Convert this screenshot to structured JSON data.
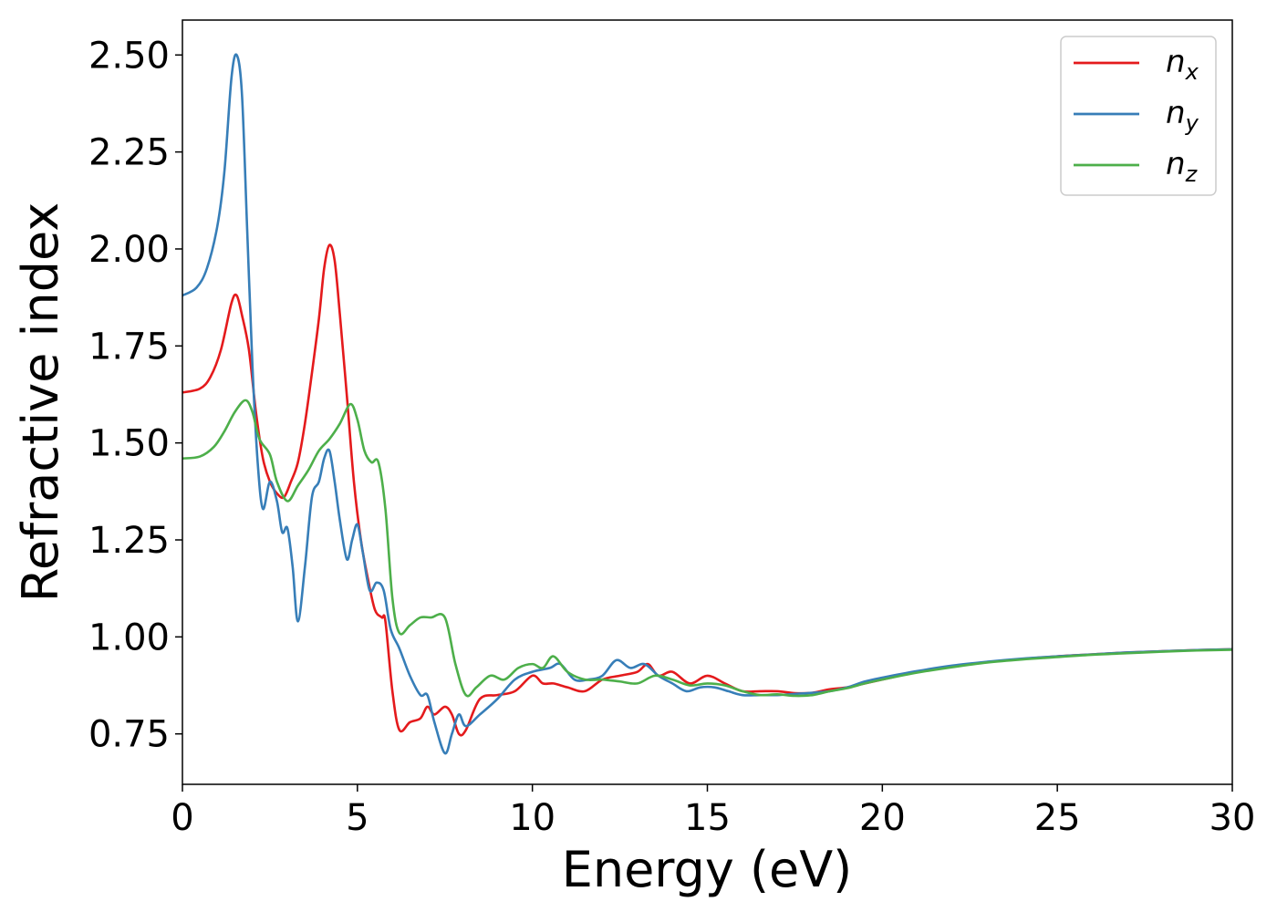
{
  "chart_data": {
    "type": "line",
    "title": "",
    "xlabel": "Energy (eV)",
    "ylabel": "Refractive index",
    "xlim": [
      0,
      30
    ],
    "ylim": [
      0.62,
      2.59
    ],
    "xticks": [
      0,
      5,
      10,
      15,
      20,
      25,
      30
    ],
    "xtick_labels": [
      "0",
      "5",
      "10",
      "15",
      "20",
      "25",
      "30"
    ],
    "yticks": [
      0.75,
      1.0,
      1.25,
      1.5,
      1.75,
      2.0,
      2.25,
      2.5
    ],
    "ytick_labels": [
      "0.75",
      "1.00",
      "1.25",
      "1.50",
      "1.75",
      "2.00",
      "2.25",
      "2.50"
    ],
    "grid": false,
    "legend_position": "top-right",
    "series": [
      {
        "name": "n",
        "subscript": "x",
        "color": "#e41a1c",
        "points": [
          [
            0,
            1.63
          ],
          [
            0.5,
            1.64
          ],
          [
            0.8,
            1.67
          ],
          [
            1.1,
            1.74
          ],
          [
            1.4,
            1.86
          ],
          [
            1.55,
            1.88
          ],
          [
            1.7,
            1.83
          ],
          [
            1.9,
            1.74
          ],
          [
            2.1,
            1.58
          ],
          [
            2.3,
            1.46
          ],
          [
            2.5,
            1.4
          ],
          [
            2.7,
            1.37
          ],
          [
            2.9,
            1.36
          ],
          [
            3.1,
            1.4
          ],
          [
            3.3,
            1.45
          ],
          [
            3.5,
            1.55
          ],
          [
            3.7,
            1.68
          ],
          [
            3.9,
            1.82
          ],
          [
            4.05,
            1.95
          ],
          [
            4.2,
            2.01
          ],
          [
            4.35,
            1.97
          ],
          [
            4.5,
            1.83
          ],
          [
            4.7,
            1.62
          ],
          [
            4.9,
            1.4
          ],
          [
            5.1,
            1.25
          ],
          [
            5.3,
            1.15
          ],
          [
            5.5,
            1.07
          ],
          [
            5.7,
            1.05
          ],
          [
            5.8,
            1.04
          ],
          [
            6.0,
            0.86
          ],
          [
            6.2,
            0.76
          ],
          [
            6.5,
            0.78
          ],
          [
            6.8,
            0.79
          ],
          [
            7.0,
            0.82
          ],
          [
            7.2,
            0.8
          ],
          [
            7.5,
            0.82
          ],
          [
            7.7,
            0.8
          ],
          [
            7.9,
            0.75
          ],
          [
            8.1,
            0.76
          ],
          [
            8.5,
            0.84
          ],
          [
            9.0,
            0.85
          ],
          [
            9.5,
            0.86
          ],
          [
            10.0,
            0.9
          ],
          [
            10.3,
            0.88
          ],
          [
            10.6,
            0.88
          ],
          [
            11.0,
            0.87
          ],
          [
            11.5,
            0.86
          ],
          [
            12.0,
            0.89
          ],
          [
            12.5,
            0.9
          ],
          [
            13.0,
            0.91
          ],
          [
            13.3,
            0.93
          ],
          [
            13.6,
            0.9
          ],
          [
            14.0,
            0.91
          ],
          [
            14.5,
            0.88
          ],
          [
            15.0,
            0.9
          ],
          [
            15.5,
            0.88
          ],
          [
            16.0,
            0.86
          ],
          [
            16.5,
            0.86
          ],
          [
            17.0,
            0.86
          ],
          [
            17.5,
            0.855
          ],
          [
            18.0,
            0.856
          ],
          [
            18.5,
            0.865
          ],
          [
            19.0,
            0.87
          ],
          [
            19.5,
            0.88
          ],
          [
            20.0,
            0.89
          ],
          [
            21.0,
            0.91
          ],
          [
            22.0,
            0.925
          ],
          [
            23.0,
            0.935
          ],
          [
            24.0,
            0.943
          ],
          [
            25.0,
            0.95
          ],
          [
            26.0,
            0.955
          ],
          [
            27.0,
            0.96
          ],
          [
            28.0,
            0.963
          ],
          [
            29.0,
            0.966
          ],
          [
            30.0,
            0.968
          ]
        ]
      },
      {
        "name": "n",
        "subscript": "y",
        "color": "#377eb8",
        "points": [
          [
            0,
            1.88
          ],
          [
            0.4,
            1.9
          ],
          [
            0.7,
            1.95
          ],
          [
            1.0,
            2.06
          ],
          [
            1.2,
            2.2
          ],
          [
            1.4,
            2.44
          ],
          [
            1.55,
            2.5
          ],
          [
            1.7,
            2.4
          ],
          [
            1.85,
            2.05
          ],
          [
            2.0,
            1.7
          ],
          [
            2.15,
            1.45
          ],
          [
            2.3,
            1.33
          ],
          [
            2.5,
            1.4
          ],
          [
            2.7,
            1.35
          ],
          [
            2.85,
            1.27
          ],
          [
            3.0,
            1.28
          ],
          [
            3.15,
            1.18
          ],
          [
            3.3,
            1.04
          ],
          [
            3.5,
            1.18
          ],
          [
            3.7,
            1.36
          ],
          [
            3.9,
            1.4
          ],
          [
            4.05,
            1.46
          ],
          [
            4.2,
            1.48
          ],
          [
            4.35,
            1.4
          ],
          [
            4.5,
            1.3
          ],
          [
            4.7,
            1.2
          ],
          [
            4.85,
            1.25
          ],
          [
            5.0,
            1.29
          ],
          [
            5.15,
            1.22
          ],
          [
            5.35,
            1.12
          ],
          [
            5.55,
            1.14
          ],
          [
            5.75,
            1.12
          ],
          [
            5.95,
            1.02
          ],
          [
            6.2,
            0.97
          ],
          [
            6.5,
            0.9
          ],
          [
            6.8,
            0.85
          ],
          [
            7.0,
            0.85
          ],
          [
            7.2,
            0.78
          ],
          [
            7.5,
            0.7
          ],
          [
            7.7,
            0.75
          ],
          [
            7.9,
            0.8
          ],
          [
            8.1,
            0.77
          ],
          [
            8.5,
            0.8
          ],
          [
            9.0,
            0.84
          ],
          [
            9.5,
            0.89
          ],
          [
            10.0,
            0.91
          ],
          [
            10.5,
            0.92
          ],
          [
            10.8,
            0.93
          ],
          [
            11.2,
            0.89
          ],
          [
            11.6,
            0.89
          ],
          [
            12.0,
            0.9
          ],
          [
            12.4,
            0.94
          ],
          [
            12.8,
            0.92
          ],
          [
            13.2,
            0.93
          ],
          [
            13.6,
            0.9
          ],
          [
            14.0,
            0.88
          ],
          [
            14.4,
            0.86
          ],
          [
            14.8,
            0.87
          ],
          [
            15.2,
            0.87
          ],
          [
            15.6,
            0.86
          ],
          [
            16.0,
            0.85
          ],
          [
            16.5,
            0.85
          ],
          [
            17.0,
            0.85
          ],
          [
            17.5,
            0.853
          ],
          [
            18.0,
            0.856
          ],
          [
            18.5,
            0.86
          ],
          [
            19.0,
            0.87
          ],
          [
            19.5,
            0.885
          ],
          [
            20.0,
            0.895
          ],
          [
            21.0,
            0.912
          ],
          [
            22.0,
            0.926
          ],
          [
            23.0,
            0.936
          ],
          [
            24.0,
            0.944
          ],
          [
            25.0,
            0.95
          ],
          [
            26.0,
            0.955
          ],
          [
            27.0,
            0.96
          ],
          [
            28.0,
            0.963
          ],
          [
            29.0,
            0.966
          ],
          [
            30.0,
            0.968
          ]
        ]
      },
      {
        "name": "n",
        "subscript": "z",
        "color": "#4daf4a",
        "points": [
          [
            0,
            1.46
          ],
          [
            0.5,
            1.465
          ],
          [
            0.9,
            1.49
          ],
          [
            1.2,
            1.53
          ],
          [
            1.5,
            1.58
          ],
          [
            1.8,
            1.61
          ],
          [
            2.0,
            1.58
          ],
          [
            2.2,
            1.51
          ],
          [
            2.5,
            1.47
          ],
          [
            2.7,
            1.4
          ],
          [
            3.0,
            1.35
          ],
          [
            3.3,
            1.39
          ],
          [
            3.6,
            1.43
          ],
          [
            3.9,
            1.48
          ],
          [
            4.2,
            1.51
          ],
          [
            4.5,
            1.55
          ],
          [
            4.8,
            1.6
          ],
          [
            5.0,
            1.56
          ],
          [
            5.2,
            1.48
          ],
          [
            5.4,
            1.45
          ],
          [
            5.6,
            1.45
          ],
          [
            5.8,
            1.33
          ],
          [
            6.0,
            1.1
          ],
          [
            6.2,
            1.01
          ],
          [
            6.5,
            1.03
          ],
          [
            6.8,
            1.05
          ],
          [
            7.1,
            1.05
          ],
          [
            7.5,
            1.05
          ],
          [
            7.8,
            0.93
          ],
          [
            8.1,
            0.85
          ],
          [
            8.4,
            0.87
          ],
          [
            8.8,
            0.9
          ],
          [
            9.2,
            0.89
          ],
          [
            9.6,
            0.92
          ],
          [
            10.0,
            0.93
          ],
          [
            10.3,
            0.92
          ],
          [
            10.6,
            0.95
          ],
          [
            11.0,
            0.91
          ],
          [
            11.5,
            0.89
          ],
          [
            12.0,
            0.89
          ],
          [
            12.5,
            0.885
          ],
          [
            13.0,
            0.88
          ],
          [
            13.5,
            0.9
          ],
          [
            14.0,
            0.89
          ],
          [
            14.5,
            0.875
          ],
          [
            15.0,
            0.88
          ],
          [
            15.5,
            0.875
          ],
          [
            16.0,
            0.86
          ],
          [
            16.5,
            0.85
          ],
          [
            17.0,
            0.852
          ],
          [
            17.5,
            0.848
          ],
          [
            18.0,
            0.85
          ],
          [
            18.5,
            0.86
          ],
          [
            19.0,
            0.868
          ],
          [
            19.5,
            0.88
          ],
          [
            20.0,
            0.89
          ],
          [
            21.0,
            0.908
          ],
          [
            22.0,
            0.922
          ],
          [
            23.0,
            0.934
          ],
          [
            24.0,
            0.942
          ],
          [
            25.0,
            0.948
          ],
          [
            26.0,
            0.954
          ],
          [
            27.0,
            0.958
          ],
          [
            28.0,
            0.962
          ],
          [
            29.0,
            0.965
          ],
          [
            30.0,
            0.967
          ]
        ]
      }
    ]
  }
}
